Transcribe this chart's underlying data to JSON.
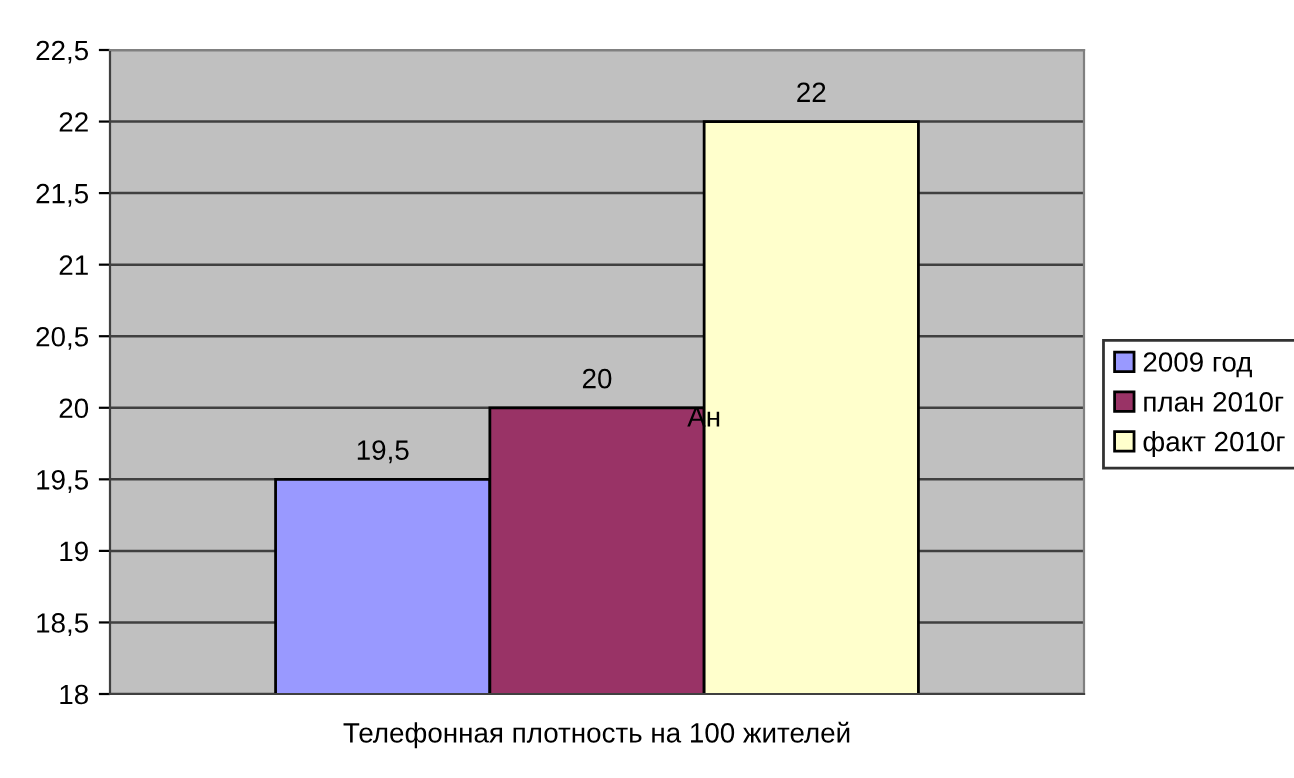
{
  "chart_data": {
    "type": "bar",
    "categories": [
      "Телефонная плотность на 100 жителей"
    ],
    "series": [
      {
        "name": "2009 год",
        "color": "#9999ff",
        "values": [
          19.5
        ]
      },
      {
        "name": "план 2010г",
        "color": "#993366",
        "values": [
          20
        ]
      },
      {
        "name": "факт 2010г",
        "color": "#ffffcc",
        "values": [
          22
        ]
      }
    ],
    "ylim": [
      18,
      22.5
    ],
    "yticks": [
      18,
      {
        "value": 18.5,
        "label": "18,5"
      },
      19,
      {
        "value": 19.5,
        "label": "19,5"
      },
      20,
      {
        "value": 20.5,
        "label": "20,5"
      },
      21,
      {
        "value": 21.5,
        "label": "21,5"
      },
      22,
      {
        "value": 22.5,
        "label": "22,5"
      }
    ],
    "value_labels": [
      [
        "19,5"
      ],
      [
        "20"
      ],
      [
        "22"
      ]
    ],
    "annotations": [
      "Ан"
    ],
    "grid": "y",
    "legend": "right"
  }
}
